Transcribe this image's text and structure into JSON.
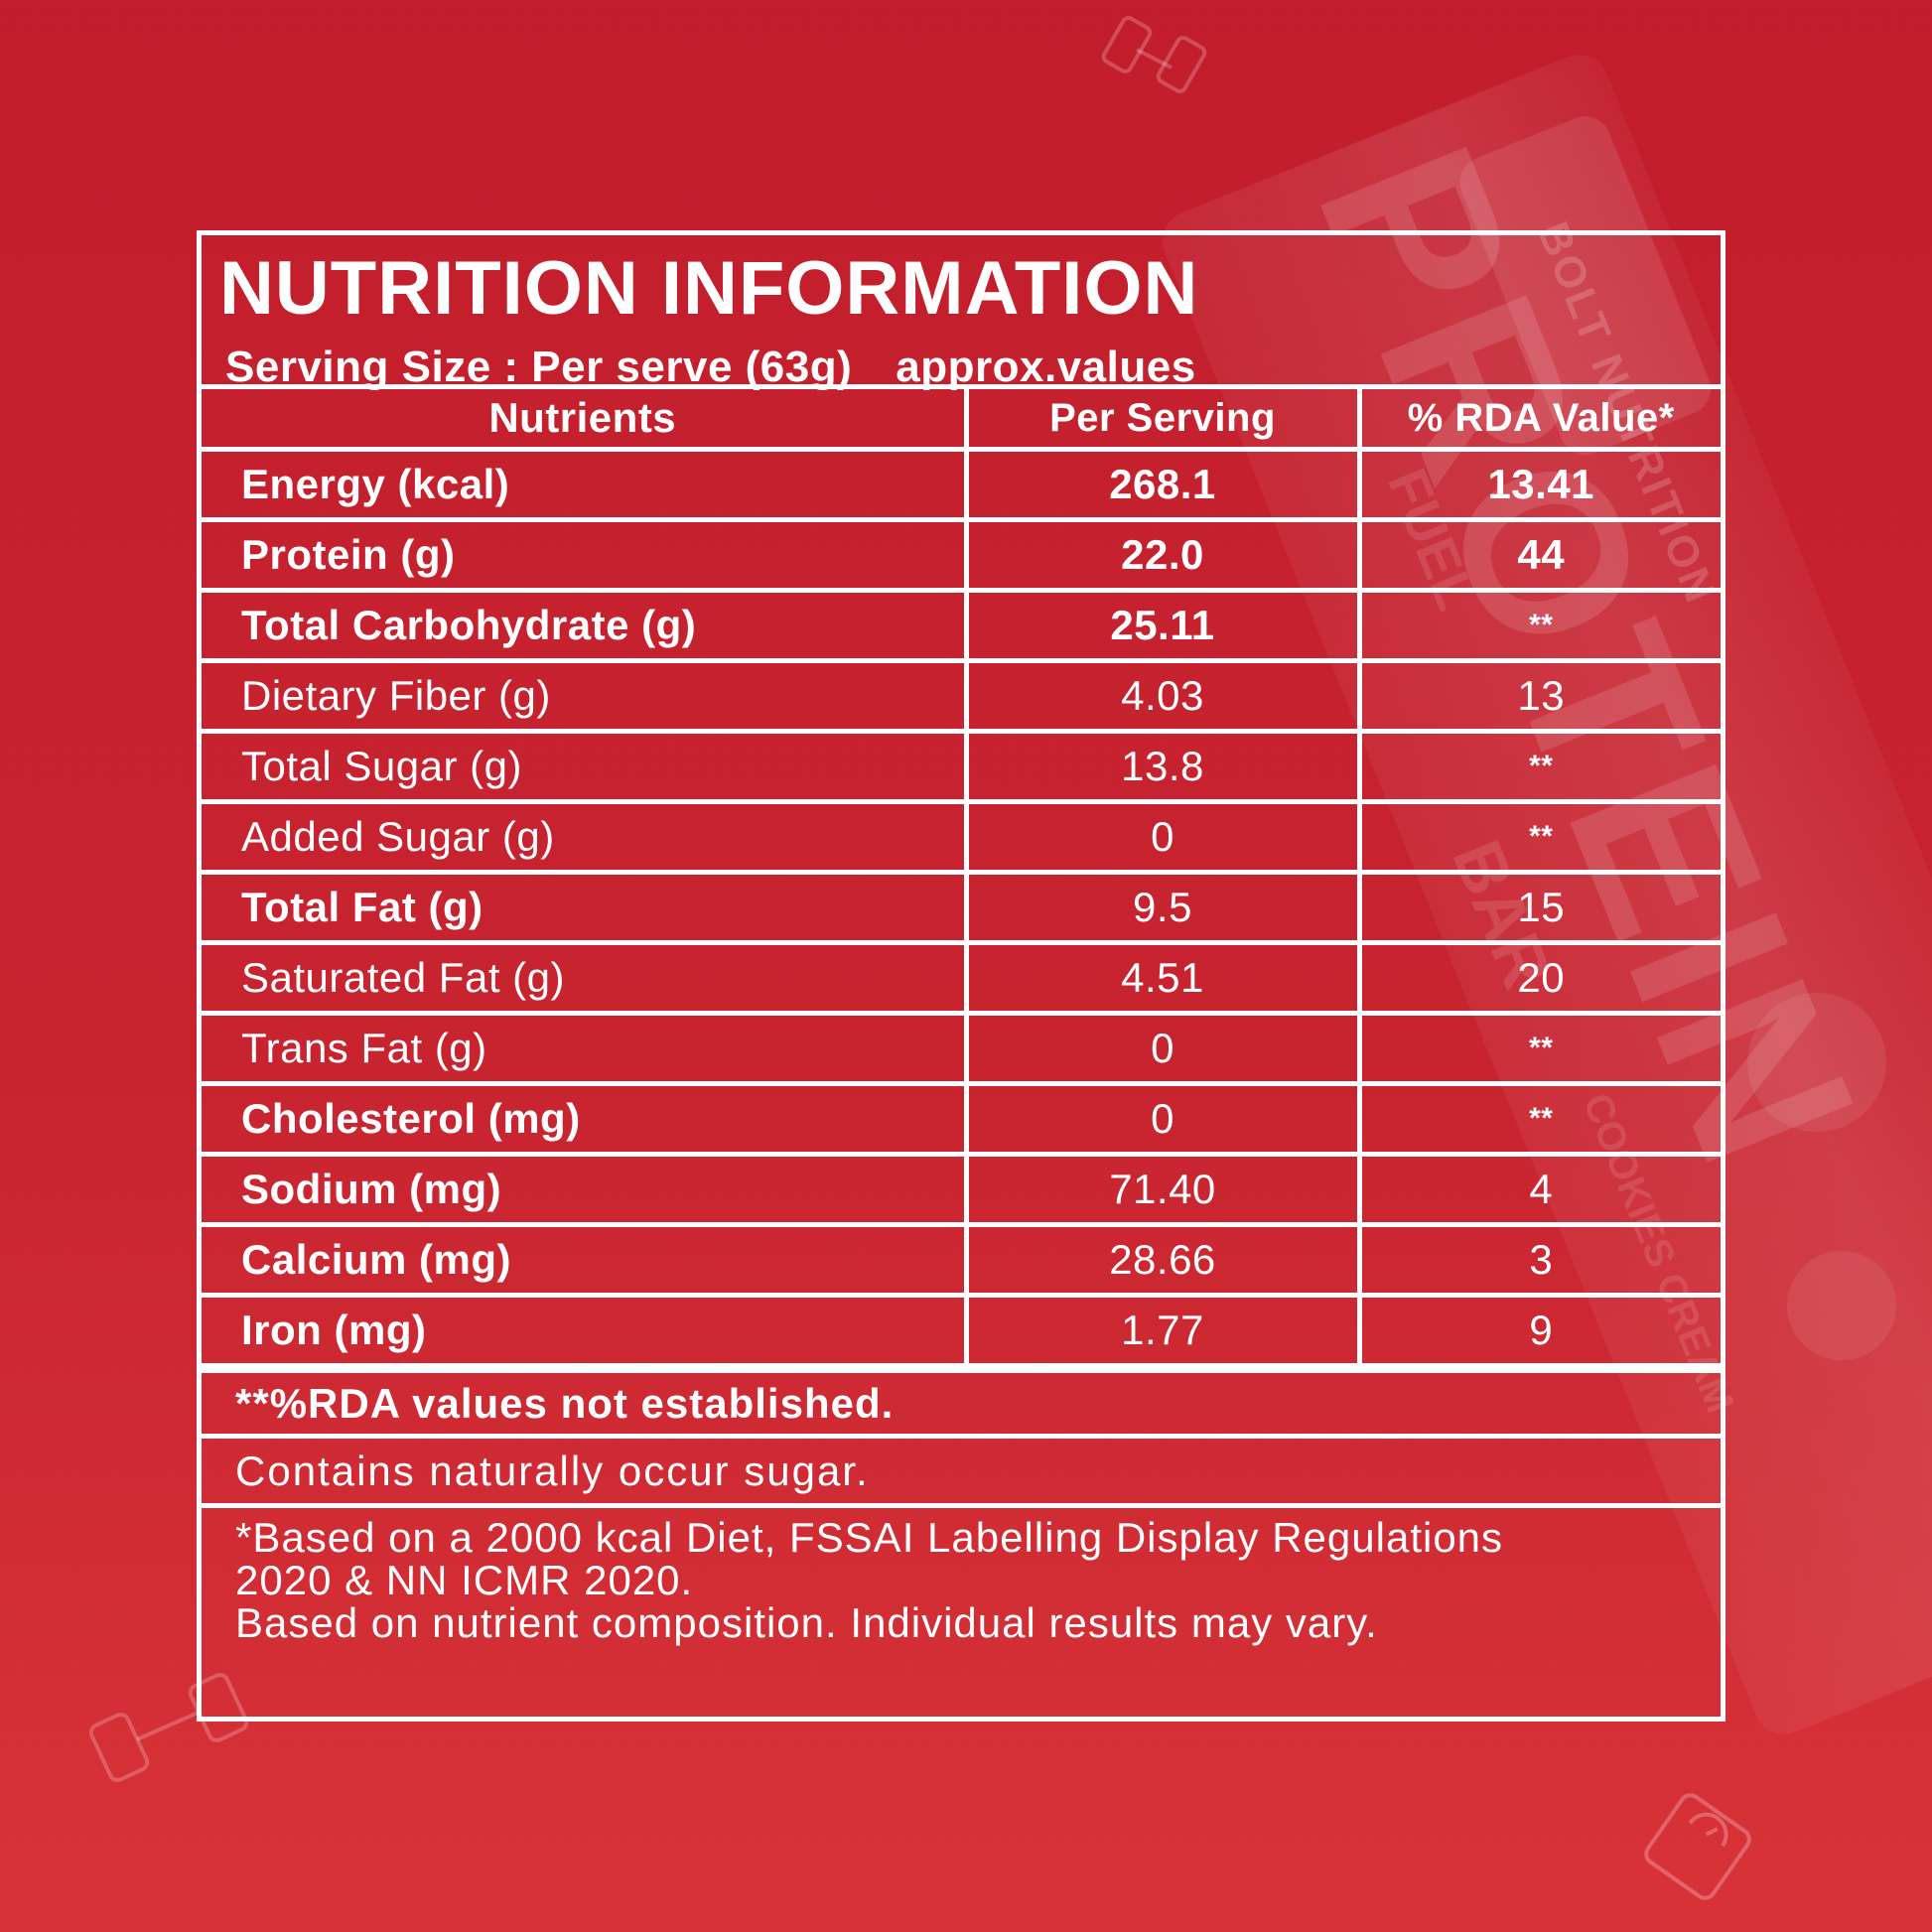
{
  "background": {
    "color_top": "#c21d2c",
    "color_bottom": "#d83338",
    "watermark": {
      "brand": "BOLT NUTRITION",
      "product": "PROTEIN",
      "product_type": "BAR",
      "tagline": "FUEL",
      "flavour": "COOKIES CREAM",
      "icons": [
        "dumbbell-icon",
        "weight-scale-icon",
        "stopwatch-icon"
      ]
    }
  },
  "label": {
    "title": "NUTRITION INFORMATION",
    "serving_size": "Serving Size : Per serve (63g)",
    "approx": "approx.values",
    "headers": {
      "nutrients": "Nutrients",
      "per_serving": "Per Serving",
      "rda": "% RDA Value*"
    },
    "rows": [
      {
        "name": "Energy (kcal)",
        "value": "268.1",
        "rda": "13.41"
      },
      {
        "name": "Protein (g)",
        "value": "22.0",
        "rda": "44"
      },
      {
        "name": "Total Carbohydrate (g)",
        "value": "25.11",
        "rda": "**"
      },
      {
        "name": "Dietary Fiber (g)",
        "value": "4.03",
        "rda": "13"
      },
      {
        "name": "Total Sugar (g)",
        "value": "13.8",
        "rda": "**"
      },
      {
        "name": "Added Sugar (g)",
        "value": "0",
        "rda": "**"
      },
      {
        "name": "Total Fat (g)",
        "value": "9.5",
        "rda": "15"
      },
      {
        "name": "Saturated Fat (g)",
        "value": "4.51",
        "rda": "20"
      },
      {
        "name": "Trans Fat (g)",
        "value": "0",
        "rda": "**"
      },
      {
        "name": "Cholesterol (mg)",
        "value": "0",
        "rda": "**"
      },
      {
        "name": "Sodium (mg)",
        "value": "71.40",
        "rda": "4"
      },
      {
        "name": "Calcium (mg)",
        "value": "28.66",
        "rda": "3"
      },
      {
        "name": "Iron (mg)",
        "value": "1.77",
        "rda": "9"
      }
    ],
    "footnotes": {
      "rda_note": "**%RDA values not established.",
      "sugar_note": "Contains naturally occur sugar.",
      "basis_line1": "*Based on a 2000 kcal Diet, FSSAI Labelling Display Regulations",
      "basis_line2": "2020 & NN ICMR 2020.",
      "basis_line3": "Based on nutrient composition. Individual results may vary."
    }
  }
}
